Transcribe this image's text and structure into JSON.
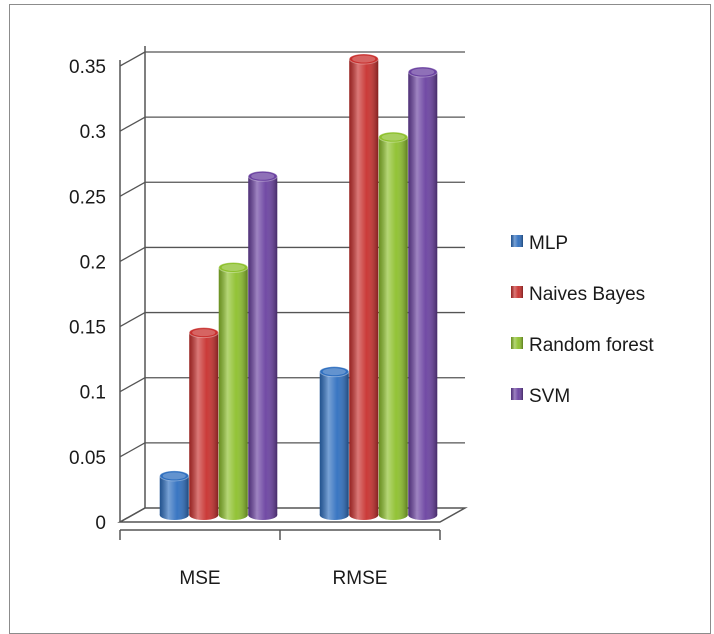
{
  "chart_data": {
    "type": "bar",
    "style": "3d-cylinder",
    "categories": [
      "MSE",
      "RMSE"
    ],
    "series": [
      {
        "name": "MLP",
        "color": "#2f6fbf",
        "values": [
          0.03,
          0.11
        ]
      },
      {
        "name": "Naives Bayes",
        "color": "#c8302e",
        "values": [
          0.14,
          0.35
        ]
      },
      {
        "name": "Random forest",
        "color": "#8dc02c",
        "values": [
          0.19,
          0.29
        ]
      },
      {
        "name": "SVM",
        "color": "#6a41a0",
        "values": [
          0.26,
          0.34
        ]
      }
    ],
    "yticks": [
      "0",
      "0.05",
      "0.1",
      "0.15",
      "0.2",
      "0.25",
      "0.3",
      "0.35"
    ],
    "ylim": [
      0,
      0.35
    ],
    "grid": true,
    "legend_position": "right"
  }
}
